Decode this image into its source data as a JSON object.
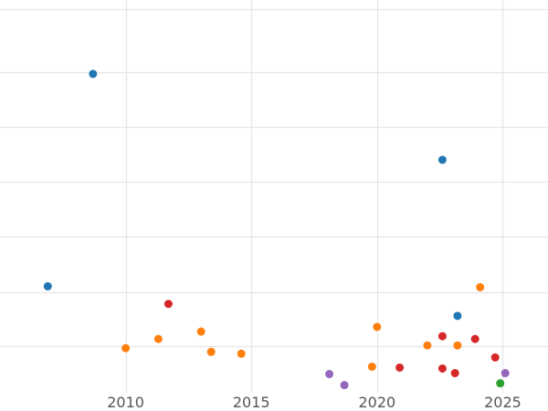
{
  "chart_data": {
    "type": "scatter",
    "title": "",
    "xlabel": "",
    "ylabel": "",
    "xlim": [
      2005.0,
      2026.8
    ],
    "ylim": [
      0,
      445
    ],
    "x_ticks": [
      2010,
      2015,
      2020,
      2025
    ],
    "x_tick_labels": [
      "2010",
      "2015",
      "2020",
      "2025"
    ],
    "y_gridlines": [
      70,
      129,
      189,
      248,
      308,
      367
    ],
    "grid": true,
    "legend": "none",
    "series": [
      {
        "color": "#1f77b4",
        "points": [
          {
            "x": 2006.9,
            "y": 135
          },
          {
            "x": 2008.7,
            "y": 365
          },
          {
            "x": 2022.6,
            "y": 272
          },
          {
            "x": 2023.2,
            "y": 103
          }
        ]
      },
      {
        "color": "#ff7f0e",
        "points": [
          {
            "x": 2010.0,
            "y": 68
          },
          {
            "x": 2011.3,
            "y": 78
          },
          {
            "x": 2013.0,
            "y": 86
          },
          {
            "x": 2013.4,
            "y": 64
          },
          {
            "x": 2014.6,
            "y": 62
          },
          {
            "x": 2019.8,
            "y": 48
          },
          {
            "x": 2020.0,
            "y": 91
          },
          {
            "x": 2022.0,
            "y": 71
          },
          {
            "x": 2023.2,
            "y": 71
          },
          {
            "x": 2024.1,
            "y": 134
          }
        ]
      },
      {
        "color": "#d62728",
        "points": [
          {
            "x": 2011.7,
            "y": 116
          },
          {
            "x": 2020.9,
            "y": 47
          },
          {
            "x": 2022.6,
            "y": 46
          },
          {
            "x": 2022.6,
            "y": 81
          },
          {
            "x": 2023.1,
            "y": 41
          },
          {
            "x": 2023.9,
            "y": 78
          },
          {
            "x": 2024.7,
            "y": 58
          }
        ]
      },
      {
        "color": "#2ca02c",
        "points": [
          {
            "x": 2024.9,
            "y": 30
          }
        ]
      },
      {
        "color": "#9467bd",
        "points": [
          {
            "x": 2018.1,
            "y": 40
          },
          {
            "x": 2018.7,
            "y": 28
          },
          {
            "x": 2025.1,
            "y": 41
          }
        ]
      }
    ]
  }
}
